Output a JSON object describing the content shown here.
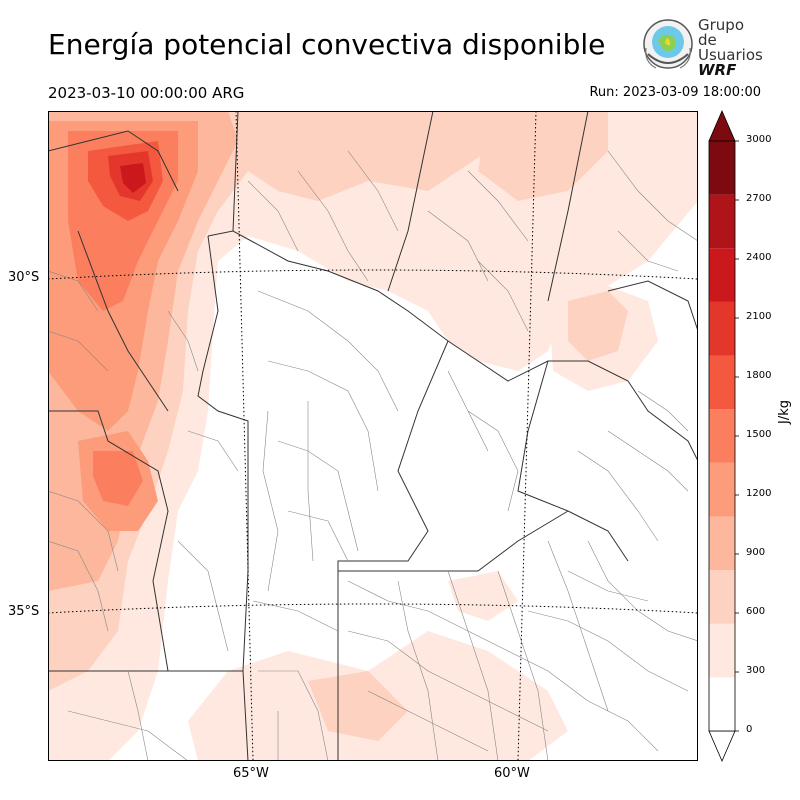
{
  "title": "Energía potencial convectiva disponible",
  "valid_time": "2023-03-10 00:00:00 ARG",
  "run_time": "Run: 2023-03-09 18:00:00",
  "logo": {
    "line1": "Grupo de",
    "line2": "Usuarios",
    "line3": "WRF"
  },
  "map": {
    "latitude_labels": [
      "30°S",
      "35°S"
    ],
    "longitude_labels": [
      "65°W",
      "60°W"
    ],
    "fill_levels_colors": [
      "#fee8df",
      "#fdd2c0",
      "#fcb79c",
      "#fc9c7b",
      "#fb7f5e",
      "#f4593f",
      "#e4372c",
      "#cb181d",
      "#ae1418",
      "#7d0a10"
    ]
  },
  "colorbar": {
    "unit": "J/kg",
    "ticks": [
      "0",
      "300",
      "600",
      "900",
      "1200",
      "1500",
      "1800",
      "2100",
      "2400",
      "2700",
      "3000"
    ],
    "colors": [
      "#ffffff",
      "#fee8df",
      "#fdd2c0",
      "#fcb79c",
      "#fc9c7b",
      "#fb7f5e",
      "#f4593f",
      "#e4372c",
      "#cb181d",
      "#ae1418",
      "#7d0a10"
    ],
    "extend": "both"
  }
}
